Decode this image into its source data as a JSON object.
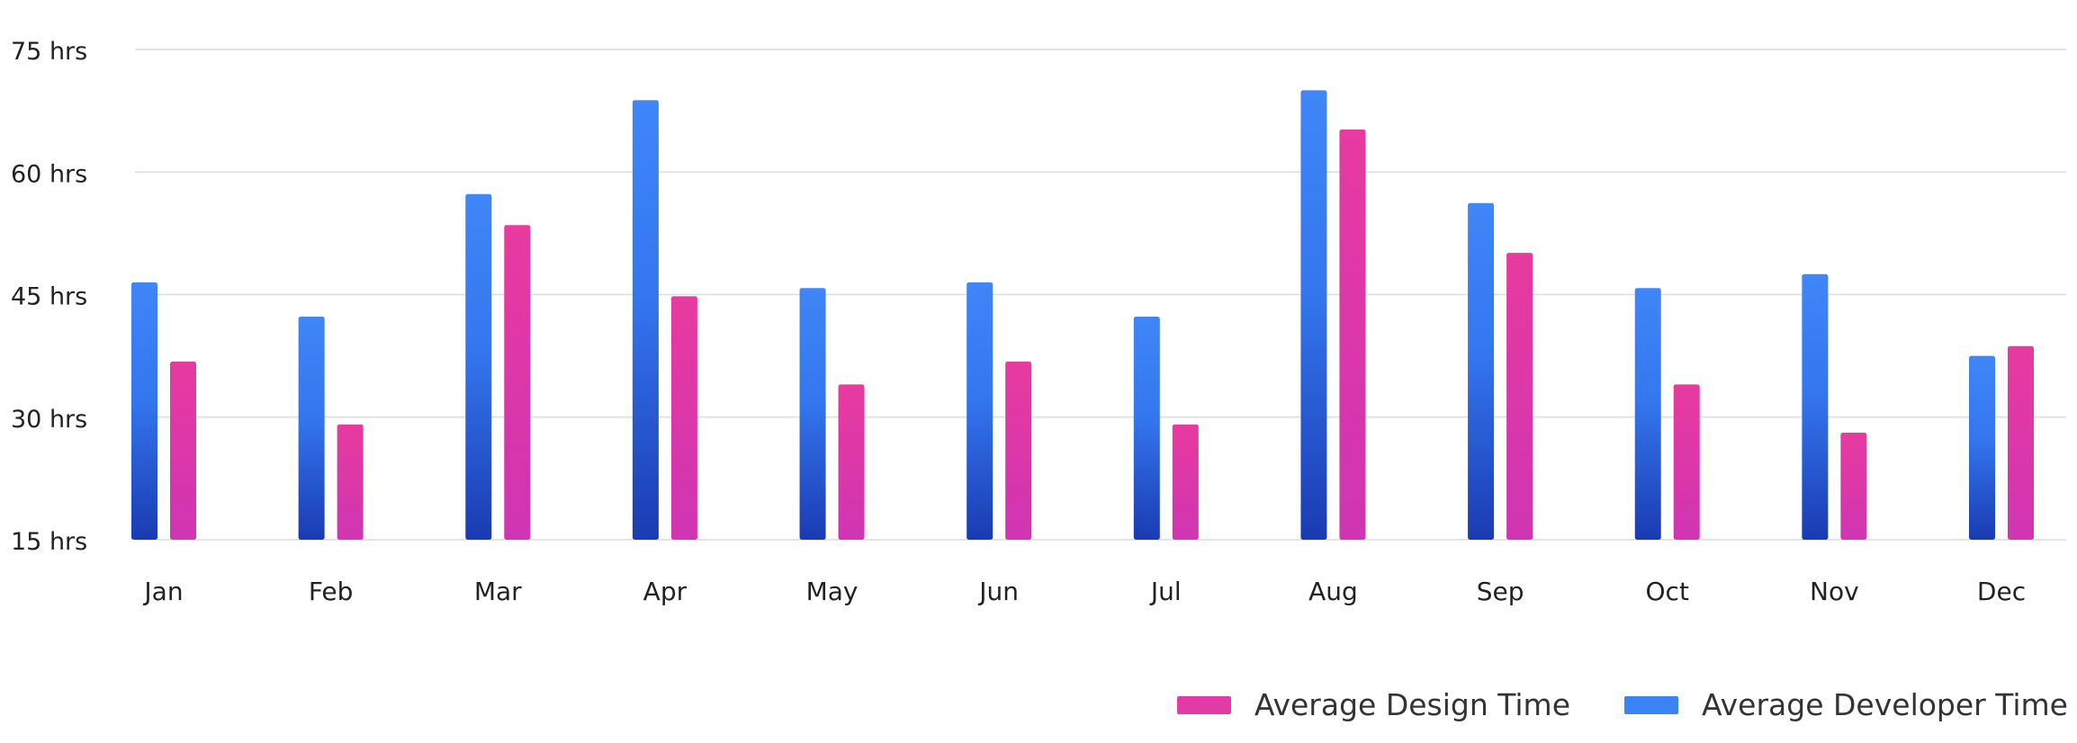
{
  "chart_data": {
    "type": "bar",
    "categories": [
      "Jan",
      "Feb",
      "Mar",
      "Apr",
      "May",
      "Jun",
      "Jul",
      "Aug",
      "Sep",
      "Oct",
      "Nov",
      "Dec"
    ],
    "series": [
      {
        "name": "Average Developer Time",
        "color": "#3b82f6",
        "values": [
          46.5,
          42.3,
          57.3,
          68.8,
          45.8,
          46.5,
          42.3,
          70.0,
          56.2,
          45.8,
          47.5,
          37.5
        ]
      },
      {
        "name": "Average Design Time",
        "color": "#e23aa6",
        "values": [
          36.8,
          29.1,
          53.5,
          44.8,
          34.0,
          36.8,
          29.1,
          65.2,
          50.1,
          34.0,
          28.1,
          38.7
        ]
      }
    ],
    "y_ticks": [
      "15 hrs",
      "30 hrs",
      "45 hrs",
      "60 hrs",
      "75 hrs"
    ],
    "y_tick_values": [
      15,
      30,
      45,
      60,
      75
    ],
    "ylim": [
      15,
      75
    ],
    "grid": true,
    "legend_position": "bottom-right"
  },
  "legend": {
    "design_label": "Average Design Time",
    "developer_label": "Average Developer Time"
  }
}
